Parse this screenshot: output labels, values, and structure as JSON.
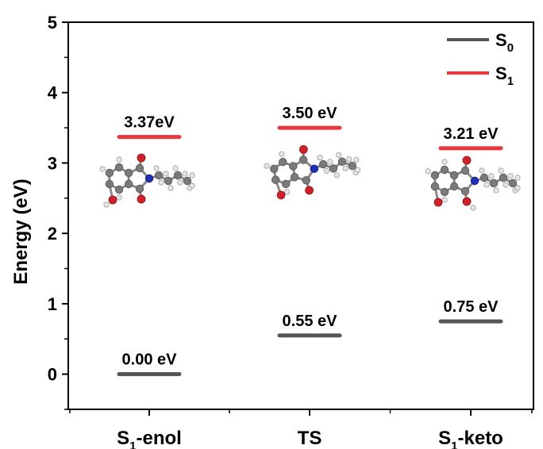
{
  "chart_data": {
    "type": "line",
    "categories": [
      {
        "main": "S",
        "sub": "1",
        "rest": "-enol"
      },
      {
        "main": "TS",
        "sub": "",
        "rest": ""
      },
      {
        "main": "S",
        "sub": "1",
        "rest": "-keto"
      }
    ],
    "ylabel": "Energy (eV)",
    "ylim": [
      -0.5,
      5
    ],
    "yticks": [
      "0",
      "1",
      "2",
      "3",
      "4",
      "5"
    ],
    "grid": false,
    "legend_position": "top-right",
    "series": [
      {
        "name_main": "S",
        "name_sub": "0",
        "color": "#555555",
        "values": [
          0.0,
          0.55,
          0.75
        ],
        "labels": [
          "0.00 eV",
          "0.55 eV",
          "0.75 eV"
        ]
      },
      {
        "name_main": "S",
        "name_sub": "1",
        "color": "#e8383d",
        "values": [
          3.37,
          3.5,
          3.21
        ],
        "labels": [
          "3.37eV",
          "3.50 eV",
          "3.21 eV"
        ]
      }
    ],
    "annotations": [
      "molecular-structure-s1-enol",
      "molecular-structure-ts",
      "molecular-structure-s1-keto"
    ]
  }
}
